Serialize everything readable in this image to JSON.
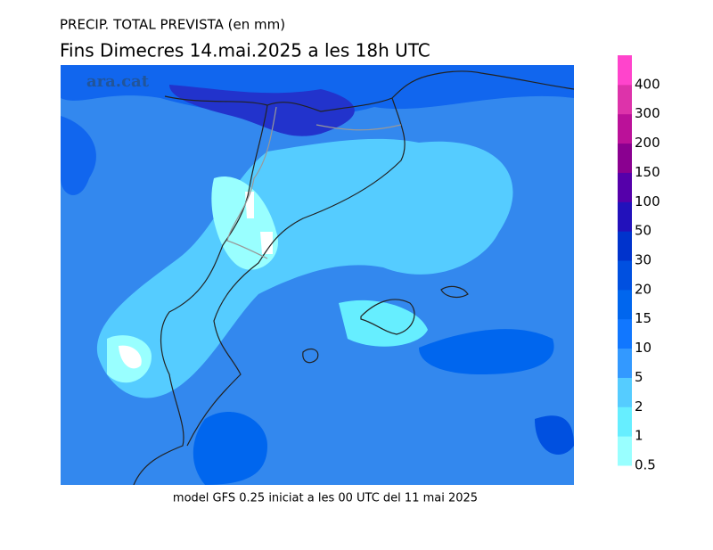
{
  "header": {
    "title": "PRECIP. TOTAL PREVISTA (en mm)",
    "subtitle": "Fins Dimecres  14.mai.2025 a les 18h UTC"
  },
  "watermark": "ara.cat",
  "footer": "model GFS 0.25 iniciat a les 00 UTC del 11 mai 2025",
  "legend": {
    "levels": [
      0.5,
      1,
      2,
      5,
      10,
      15,
      20,
      30,
      50,
      100,
      150,
      200,
      300,
      400
    ],
    "colors": [
      "#99ffff",
      "#66eeff",
      "#55ccff",
      "#3399ff",
      "#1177ff",
      "#0066ee",
      "#0050e0",
      "#0033cc",
      "#2211bb",
      "#5500aa",
      "#8a0090",
      "#bb1199",
      "#dd33aa",
      "#ff44cc"
    ]
  }
}
